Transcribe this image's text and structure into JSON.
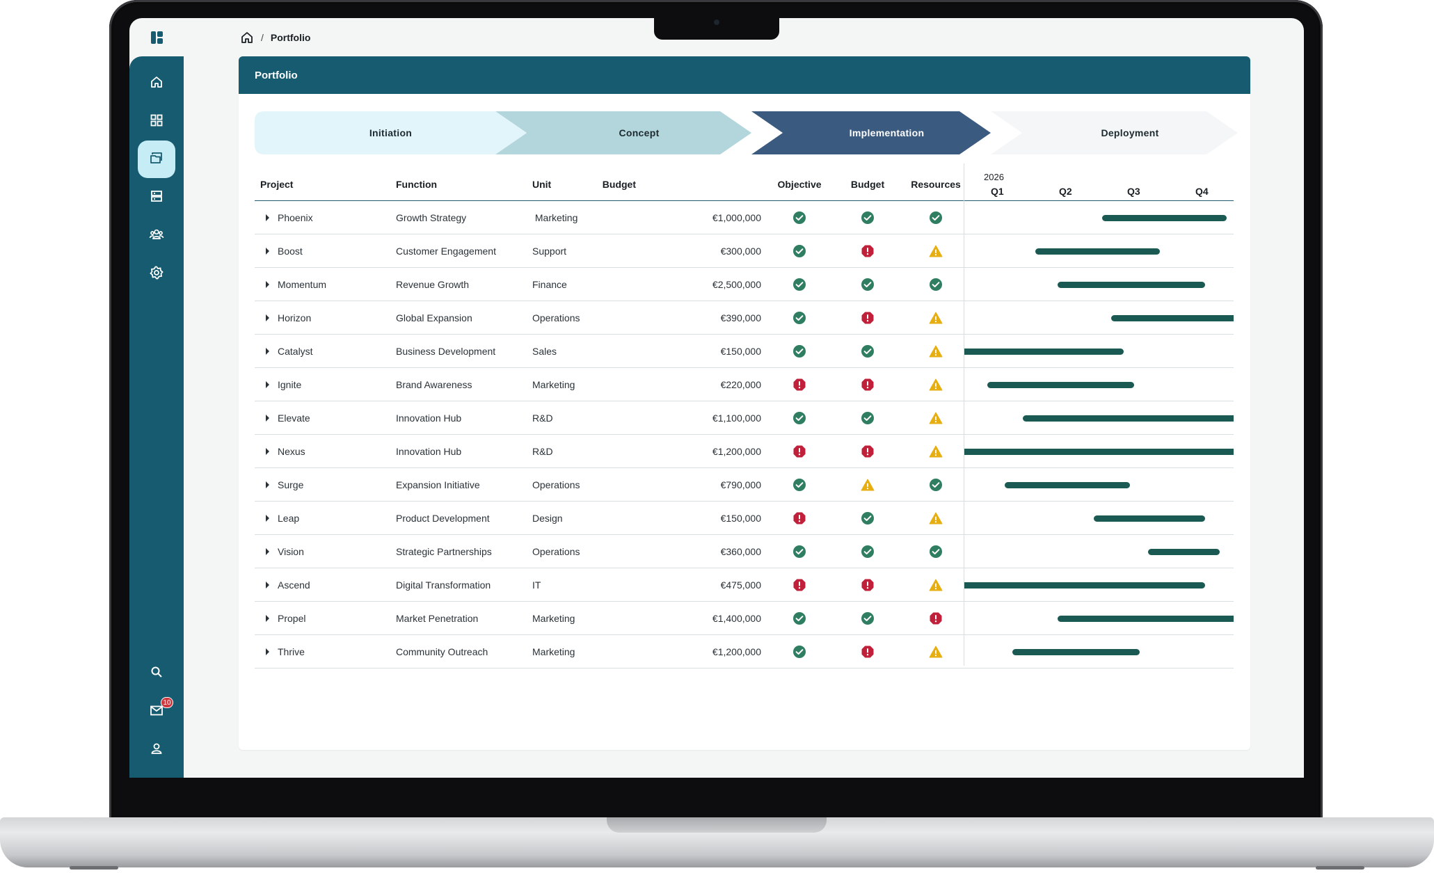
{
  "breadcrumb": {
    "current": "Portfolio",
    "separator": "/"
  },
  "panel": {
    "title": "Portfolio"
  },
  "stages": [
    {
      "label": "Initiation",
      "fill": "#e2f5fa",
      "text": "#1d2a30"
    },
    {
      "label": "Concept",
      "fill": "#b2d6dc",
      "text": "#1d2a30"
    },
    {
      "label": "Implementation",
      "fill": "#3b5a80",
      "text": "#ffffff"
    },
    {
      "label": "Deployment",
      "fill": "#f5f6f7",
      "text": "#1d2a30"
    }
  ],
  "table": {
    "headers": {
      "project": "Project",
      "function": "Function",
      "unit": "Unit",
      "budget": "Budget",
      "objective": "Objective",
      "budget_status": "Budget",
      "resources": "Resources"
    },
    "timeline": {
      "year": "2026",
      "quarters": [
        "Q1",
        "Q2",
        "Q3",
        "Q4"
      ]
    },
    "rows": [
      {
        "project": "Phoenix",
        "function": "Growth Strategy",
        "unit": " Marketing",
        "budget": "€1,000,000",
        "objective": "ok",
        "budget_status": "ok",
        "resources": "ok",
        "start": 2.05,
        "end": 3.9
      },
      {
        "project": "Boost",
        "function": "Customer Engagement",
        "unit": "Support",
        "budget": "€300,000",
        "objective": "ok",
        "budget_status": "error",
        "resources": "warning",
        "start": 1.05,
        "end": 2.9
      },
      {
        "project": "Momentum",
        "function": "Revenue Growth",
        "unit": "Finance",
        "budget": "€2,500,000",
        "objective": "ok",
        "budget_status": "ok",
        "resources": "ok",
        "start": 1.38,
        "end": 3.58
      },
      {
        "project": "Horizon",
        "function": "Global Expansion",
        "unit": "Operations",
        "budget": "€390,000",
        "objective": "ok",
        "budget_status": "error",
        "resources": "warning",
        "start": 2.18,
        "end": 4.0
      },
      {
        "project": "Catalyst",
        "function": "Business Development",
        "unit": "Sales",
        "budget": "€150,000",
        "objective": "ok",
        "budget_status": "ok",
        "resources": "warning",
        "start": 0.0,
        "end": 2.37
      },
      {
        "project": "Ignite",
        "function": "Brand Awareness",
        "unit": "Marketing",
        "budget": "€220,000",
        "objective": "error",
        "budget_status": "error",
        "resources": "warning",
        "start": 0.34,
        "end": 2.52
      },
      {
        "project": "Elevate",
        "function": "Innovation Hub",
        "unit": "R&D",
        "budget": "€1,100,000",
        "objective": "ok",
        "budget_status": "ok",
        "resources": "warning",
        "start": 0.87,
        "end": 4.0
      },
      {
        "project": "Nexus",
        "function": "Innovation Hub",
        "unit": "R&D",
        "budget": "€1,200,000",
        "objective": "error",
        "budget_status": "error",
        "resources": "warning",
        "start": 0.0,
        "end": 4.0
      },
      {
        "project": "Surge",
        "function": "Expansion Initiative",
        "unit": "Operations",
        "budget": "€790,000",
        "objective": "ok",
        "budget_status": "warning",
        "resources": "ok",
        "start": 0.6,
        "end": 2.46
      },
      {
        "project": "Leap",
        "function": "Product Development",
        "unit": "Design",
        "budget": "€150,000",
        "objective": "error",
        "budget_status": "ok",
        "resources": "warning",
        "start": 1.92,
        "end": 3.58
      },
      {
        "project": "Vision",
        "function": "Strategic Partnerships",
        "unit": "Operations",
        "budget": "€360,000",
        "objective": "ok",
        "budget_status": "ok",
        "resources": "ok",
        "start": 2.73,
        "end": 3.79
      },
      {
        "project": "Ascend",
        "function": "Digital Transformation",
        "unit": "IT",
        "budget": "€475,000",
        "objective": "error",
        "budget_status": "error",
        "resources": "warning",
        "start": 0.0,
        "end": 3.58
      },
      {
        "project": "Propel",
        "function": "Market Penetration",
        "unit": "Marketing",
        "budget": "€1,400,000",
        "objective": "ok",
        "budget_status": "ok",
        "resources": "error",
        "start": 1.38,
        "end": 4.0
      },
      {
        "project": "Thrive",
        "function": "Community Outreach",
        "unit": "Marketing",
        "budget": "€1,200,000",
        "objective": "ok",
        "budget_status": "error",
        "resources": "warning",
        "start": 0.71,
        "end": 2.6
      }
    ]
  },
  "status_colors": {
    "ok": "#2f7e62",
    "error": "#c0203a",
    "warning": "#e7ae12"
  },
  "sidebar": {
    "items": [
      {
        "icon": "home-icon"
      },
      {
        "icon": "dashboard-icon"
      },
      {
        "icon": "portfolio-folder-icon",
        "active": true
      },
      {
        "icon": "database-icon"
      },
      {
        "icon": "team-icon"
      },
      {
        "icon": "settings-icon"
      }
    ],
    "bottom": [
      {
        "icon": "search-icon"
      },
      {
        "icon": "mail-icon",
        "badge": "10"
      },
      {
        "icon": "user-icon"
      }
    ]
  },
  "colors": {
    "primary": "#175b70",
    "active_nav": "#c6ecf6",
    "bar": "#1a5a52"
  }
}
